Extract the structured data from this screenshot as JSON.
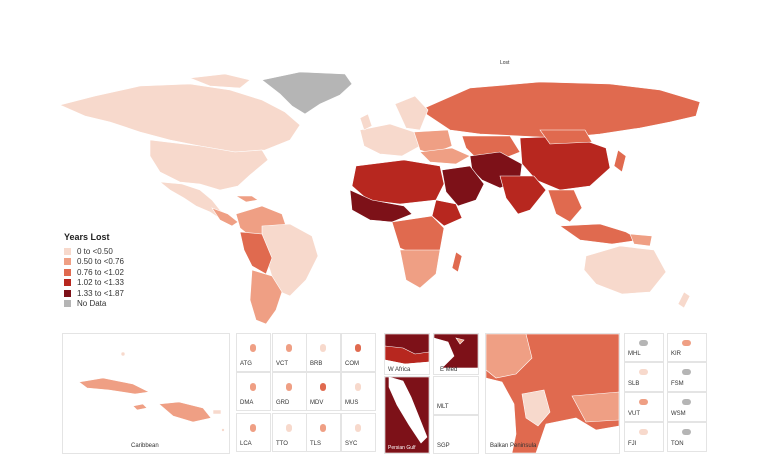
{
  "header": {
    "top_mark": "Lost"
  },
  "colors": {
    "c0": "#f7d9cc",
    "c1": "#ef9f84",
    "c2": "#e06a4f",
    "c3": "#b7271f",
    "c4": "#7d1118",
    "nodata": "#b5b5b5",
    "water": "#ffffff"
  },
  "legend": {
    "title": "Years Lost",
    "items": [
      {
        "label": "0 to <0.50",
        "color": "#f7d9cc"
      },
      {
        "label": "0.50 to <0.76",
        "color": "#ef9f84"
      },
      {
        "label": "0.76 to <1.02",
        "color": "#e06a4f"
      },
      {
        "label": "1.02 to <1.33",
        "color": "#b7271f"
      },
      {
        "label": "1.33 to <1.87",
        "color": "#7d1118"
      },
      {
        "label": "No Data",
        "color": "#b5b5b5"
      }
    ]
  },
  "insets": {
    "caribbean": "Caribbean",
    "small_islands": [
      "ATG",
      "VCT",
      "BRB",
      "COM",
      "DMA",
      "GRD",
      "MDV",
      "MUS",
      "LCA",
      "TTO",
      "TLS",
      "SYC"
    ],
    "w_africa": "W Africa",
    "e_med": "E Med",
    "persian_gulf": "Persian Gulf",
    "mlt": "MLT",
    "sgp": "SGP",
    "balkan": "Balkan Peninsula",
    "pacific": [
      "MHL",
      "KIR",
      "SLB",
      "FSM",
      "VUT",
      "WSM",
      "FJI",
      "TON"
    ]
  }
}
